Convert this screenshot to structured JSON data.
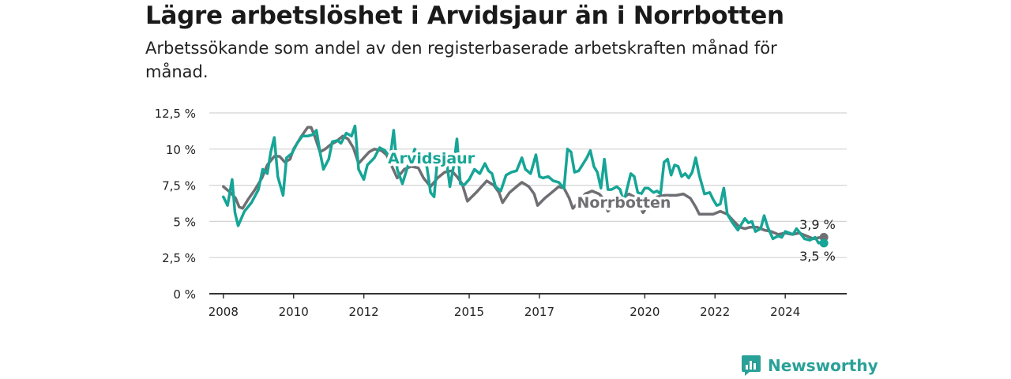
{
  "title": "Lägre arbetslöshet i Arvidsjaur än i Norrbotten",
  "subtitle": "Arbetssökande som andel av den registerbaserade arbetskraften månad för månad.",
  "brand": {
    "name": "Newsworthy",
    "icon": "newsworthy-logo-icon",
    "color": "#2aa198"
  },
  "chart_data": {
    "type": "line",
    "x_unit": "year",
    "xlim": [
      2007.6,
      2025.75
    ],
    "ylim": [
      0,
      12.5
    ],
    "yticks": [
      0,
      2.5,
      5,
      7.5,
      10,
      12.5
    ],
    "ytick_labels": [
      "0 %",
      "2,5 %",
      "5 %",
      "7,5 %",
      "10 %",
      "12,5 %"
    ],
    "xticks": [
      2008,
      2010,
      2012,
      2015,
      2017,
      2020,
      2022,
      2024
    ],
    "xtick_labels": [
      "2008",
      "2010",
      "2012",
      "2015",
      "2017",
      "2020",
      "2022",
      "2024"
    ],
    "grid": true,
    "legend": "inline labels",
    "series": [
      {
        "name": "Norrbotten",
        "color": "#6e6e73",
        "end_label": "3,9 %",
        "points": [
          [
            2008.0,
            7.4
          ],
          [
            2008.2,
            7.0
          ],
          [
            2008.35,
            6.6
          ],
          [
            2008.45,
            6.0
          ],
          [
            2008.55,
            5.9
          ],
          [
            2008.7,
            6.5
          ],
          [
            2008.9,
            7.2
          ],
          [
            2009.1,
            8.0
          ],
          [
            2009.25,
            8.9
          ],
          [
            2009.45,
            9.5
          ],
          [
            2009.6,
            9.5
          ],
          [
            2009.75,
            9.1
          ],
          [
            2009.9,
            9.3
          ],
          [
            2010.0,
            10.0
          ],
          [
            2010.2,
            10.8
          ],
          [
            2010.4,
            11.5
          ],
          [
            2010.5,
            11.5
          ],
          [
            2010.6,
            10.9
          ],
          [
            2010.75,
            9.8
          ],
          [
            2010.9,
            10.0
          ],
          [
            2011.05,
            10.3
          ],
          [
            2011.2,
            10.5
          ],
          [
            2011.4,
            10.9
          ],
          [
            2011.55,
            10.7
          ],
          [
            2011.7,
            10.1
          ],
          [
            2011.85,
            9.0
          ],
          [
            2012.0,
            9.4
          ],
          [
            2012.15,
            9.8
          ],
          [
            2012.3,
            10.0
          ],
          [
            2012.5,
            9.9
          ],
          [
            2012.65,
            9.6
          ],
          [
            2012.8,
            8.8
          ],
          [
            2012.95,
            8.0
          ],
          [
            2013.15,
            8.6
          ],
          [
            2013.35,
            8.8
          ],
          [
            2013.55,
            8.7
          ],
          [
            2013.7,
            8.0
          ],
          [
            2013.9,
            7.4
          ],
          [
            2014.1,
            8.0
          ],
          [
            2014.3,
            8.4
          ],
          [
            2014.5,
            8.5
          ],
          [
            2014.65,
            8.1
          ],
          [
            2014.8,
            7.6
          ],
          [
            2014.95,
            6.4
          ],
          [
            2015.2,
            7.0
          ],
          [
            2015.35,
            7.4
          ],
          [
            2015.5,
            7.8
          ],
          [
            2015.7,
            7.5
          ],
          [
            2015.85,
            7.0
          ],
          [
            2015.95,
            6.3
          ],
          [
            2016.15,
            7.0
          ],
          [
            2016.35,
            7.4
          ],
          [
            2016.5,
            7.7
          ],
          [
            2016.7,
            7.4
          ],
          [
            2016.85,
            6.9
          ],
          [
            2016.95,
            6.1
          ],
          [
            2017.15,
            6.6
          ],
          [
            2017.35,
            7.0
          ],
          [
            2017.55,
            7.4
          ],
          [
            2017.7,
            7.3
          ],
          [
            2017.85,
            6.6
          ],
          [
            2017.95,
            5.9
          ],
          [
            2018.15,
            6.4
          ],
          [
            2018.3,
            6.9
          ],
          [
            2018.5,
            7.1
          ],
          [
            2018.7,
            6.9
          ],
          [
            2018.85,
            6.5
          ],
          [
            2018.95,
            5.7
          ],
          [
            2019.15,
            6.2
          ],
          [
            2019.35,
            6.6
          ],
          [
            2019.55,
            6.9
          ],
          [
            2019.7,
            6.7
          ],
          [
            2019.85,
            6.1
          ],
          [
            2019.95,
            5.6
          ],
          [
            2020.15,
            6.3
          ],
          [
            2020.35,
            6.7
          ],
          [
            2020.55,
            6.8
          ],
          [
            2020.75,
            6.8
          ],
          [
            2020.9,
            6.8
          ],
          [
            2021.1,
            6.9
          ],
          [
            2021.3,
            6.6
          ],
          [
            2021.45,
            6.0
          ],
          [
            2021.55,
            5.5
          ],
          [
            2021.75,
            5.5
          ],
          [
            2021.95,
            5.5
          ],
          [
            2022.15,
            5.7
          ],
          [
            2022.35,
            5.5
          ],
          [
            2022.5,
            5.1
          ],
          [
            2022.7,
            4.6
          ],
          [
            2022.85,
            4.5
          ],
          [
            2023.0,
            4.6
          ],
          [
            2023.2,
            4.6
          ],
          [
            2023.4,
            4.4
          ],
          [
            2023.6,
            4.3
          ],
          [
            2023.8,
            4.1
          ],
          [
            2024.0,
            4.2
          ],
          [
            2024.2,
            4.1
          ],
          [
            2024.4,
            4.2
          ],
          [
            2024.6,
            4.0
          ],
          [
            2024.8,
            3.8
          ],
          [
            2025.0,
            3.9
          ],
          [
            2025.1,
            3.9
          ]
        ]
      },
      {
        "name": "Arvidsjaur",
        "color": "#16a596",
        "end_label": "3,5 %",
        "points": [
          [
            2008.0,
            6.7
          ],
          [
            2008.12,
            6.1
          ],
          [
            2008.25,
            7.9
          ],
          [
            2008.33,
            5.6
          ],
          [
            2008.42,
            4.7
          ],
          [
            2008.6,
            5.7
          ],
          [
            2008.8,
            6.3
          ],
          [
            2009.0,
            7.2
          ],
          [
            2009.12,
            8.6
          ],
          [
            2009.25,
            8.3
          ],
          [
            2009.35,
            9.8
          ],
          [
            2009.45,
            10.8
          ],
          [
            2009.55,
            8.1
          ],
          [
            2009.7,
            6.8
          ],
          [
            2009.8,
            9.4
          ],
          [
            2009.95,
            9.7
          ],
          [
            2010.1,
            10.4
          ],
          [
            2010.25,
            10.9
          ],
          [
            2010.4,
            10.9
          ],
          [
            2010.55,
            11.0
          ],
          [
            2010.65,
            11.3
          ],
          [
            2010.75,
            9.8
          ],
          [
            2010.85,
            8.6
          ],
          [
            2011.0,
            9.3
          ],
          [
            2011.1,
            10.5
          ],
          [
            2011.25,
            10.6
          ],
          [
            2011.35,
            10.4
          ],
          [
            2011.5,
            11.1
          ],
          [
            2011.65,
            10.9
          ],
          [
            2011.75,
            11.6
          ],
          [
            2011.85,
            8.6
          ],
          [
            2012.0,
            7.9
          ],
          [
            2012.1,
            8.9
          ],
          [
            2012.3,
            9.4
          ],
          [
            2012.45,
            10.1
          ],
          [
            2012.6,
            9.9
          ],
          [
            2012.75,
            9.4
          ],
          [
            2012.85,
            11.3
          ],
          [
            2012.95,
            8.6
          ],
          [
            2013.1,
            7.6
          ],
          [
            2013.25,
            8.8
          ],
          [
            2013.35,
            9.2
          ],
          [
            2013.45,
            10.0
          ],
          [
            2013.55,
            9.5
          ],
          [
            2013.7,
            9.6
          ],
          [
            2013.8,
            8.7
          ],
          [
            2013.9,
            7.0
          ],
          [
            2014.0,
            6.7
          ],
          [
            2014.1,
            9.4
          ],
          [
            2014.25,
            9.8
          ],
          [
            2014.35,
            9.3
          ],
          [
            2014.45,
            7.4
          ],
          [
            2014.55,
            8.7
          ],
          [
            2014.65,
            10.7
          ],
          [
            2014.75,
            7.6
          ],
          [
            2014.85,
            7.5
          ],
          [
            2015.0,
            7.9
          ],
          [
            2015.15,
            8.6
          ],
          [
            2015.3,
            8.3
          ],
          [
            2015.45,
            9.0
          ],
          [
            2015.55,
            8.5
          ],
          [
            2015.65,
            8.3
          ],
          [
            2015.75,
            7.4
          ],
          [
            2015.9,
            7.1
          ],
          [
            2016.05,
            8.2
          ],
          [
            2016.2,
            8.4
          ],
          [
            2016.35,
            8.5
          ],
          [
            2016.5,
            9.4
          ],
          [
            2016.6,
            8.6
          ],
          [
            2016.75,
            8.3
          ],
          [
            2016.9,
            9.6
          ],
          [
            2017.0,
            8.1
          ],
          [
            2017.1,
            8.0
          ],
          [
            2017.25,
            8.1
          ],
          [
            2017.4,
            7.8
          ],
          [
            2017.55,
            7.7
          ],
          [
            2017.7,
            7.3
          ],
          [
            2017.8,
            10.0
          ],
          [
            2017.9,
            9.8
          ],
          [
            2018.0,
            8.4
          ],
          [
            2018.12,
            8.5
          ],
          [
            2018.25,
            9.0
          ],
          [
            2018.35,
            9.4
          ],
          [
            2018.45,
            9.9
          ],
          [
            2018.55,
            8.8
          ],
          [
            2018.65,
            8.4
          ],
          [
            2018.75,
            7.3
          ],
          [
            2018.85,
            9.3
          ],
          [
            2018.95,
            7.2
          ],
          [
            2019.05,
            7.2
          ],
          [
            2019.2,
            7.4
          ],
          [
            2019.3,
            7.2
          ],
          [
            2019.4,
            6.3
          ],
          [
            2019.5,
            7.3
          ],
          [
            2019.6,
            8.3
          ],
          [
            2019.7,
            8.1
          ],
          [
            2019.8,
            7.0
          ],
          [
            2019.9,
            6.9
          ],
          [
            2020.0,
            7.3
          ],
          [
            2020.1,
            7.3
          ],
          [
            2020.25,
            7.0
          ],
          [
            2020.35,
            7.1
          ],
          [
            2020.45,
            6.9
          ],
          [
            2020.55,
            9.1
          ],
          [
            2020.65,
            9.3
          ],
          [
            2020.75,
            8.2
          ],
          [
            2020.85,
            8.9
          ],
          [
            2020.95,
            8.8
          ],
          [
            2021.05,
            8.1
          ],
          [
            2021.15,
            8.3
          ],
          [
            2021.25,
            8.0
          ],
          [
            2021.35,
            8.4
          ],
          [
            2021.45,
            9.4
          ],
          [
            2021.55,
            8.2
          ],
          [
            2021.7,
            6.9
          ],
          [
            2021.85,
            7.0
          ],
          [
            2021.95,
            6.5
          ],
          [
            2022.05,
            6.1
          ],
          [
            2022.15,
            6.2
          ],
          [
            2022.25,
            7.3
          ],
          [
            2022.35,
            5.5
          ],
          [
            2022.5,
            4.9
          ],
          [
            2022.65,
            4.4
          ],
          [
            2022.75,
            4.8
          ],
          [
            2022.85,
            5.2
          ],
          [
            2022.95,
            4.9
          ],
          [
            2023.05,
            5.0
          ],
          [
            2023.15,
            4.3
          ],
          [
            2023.3,
            4.5
          ],
          [
            2023.4,
            5.4
          ],
          [
            2023.5,
            4.6
          ],
          [
            2023.65,
            3.8
          ],
          [
            2023.8,
            4.0
          ],
          [
            2023.9,
            3.9
          ],
          [
            2024.0,
            4.3
          ],
          [
            2024.12,
            4.2
          ],
          [
            2024.22,
            4.1
          ],
          [
            2024.32,
            4.5
          ],
          [
            2024.42,
            4.2
          ],
          [
            2024.55,
            3.8
          ],
          [
            2024.7,
            3.7
          ],
          [
            2024.85,
            3.9
          ],
          [
            2024.95,
            3.5
          ],
          [
            2025.05,
            3.6
          ],
          [
            2025.1,
            3.5
          ]
        ]
      }
    ]
  }
}
